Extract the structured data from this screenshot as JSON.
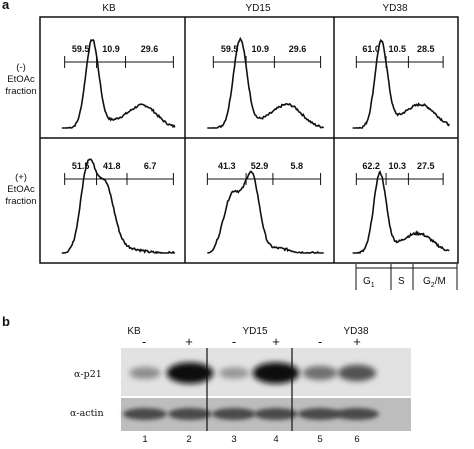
{
  "panel_a": {
    "letter": "a",
    "columns": [
      "KB",
      "YD15",
      "YD38"
    ],
    "rows": [
      {
        "label_lines": [
          "(-)",
          "EtOAc",
          "fraction"
        ]
      },
      {
        "label_lines": [
          "(+)",
          "EtOAc",
          "fraction"
        ]
      }
    ],
    "percentages": [
      [
        [
          "59.5",
          "10.9",
          "29.6"
        ],
        [
          "59.5",
          "10.9",
          "29.6"
        ],
        [
          "61.0",
          "10.5",
          "28.5"
        ]
      ],
      [
        [
          "51.5",
          "41.8",
          "6.7"
        ],
        [
          "41.3",
          "52.9",
          "5.8"
        ],
        [
          "62.2",
          "10.3",
          "27.5"
        ]
      ]
    ],
    "gate_legend": {
      "g1": "G",
      "g1_sub": "1",
      "s": "S",
      "g2m_a": "G",
      "g2m_sub": "2",
      "g2m_b": "/M"
    }
  },
  "panel_b": {
    "letter": "b",
    "groups": [
      "KB",
      "YD15",
      "YD38"
    ],
    "treatments": [
      "-",
      "+",
      "-",
      "+",
      "-",
      "+"
    ],
    "rows": [
      "α-p21",
      "α-actin"
    ],
    "lanes": [
      "1",
      "2",
      "3",
      "4",
      "5",
      "6"
    ],
    "p21_intensity": [
      0.3,
      0.95,
      0.25,
      0.95,
      0.45,
      0.6
    ]
  }
}
